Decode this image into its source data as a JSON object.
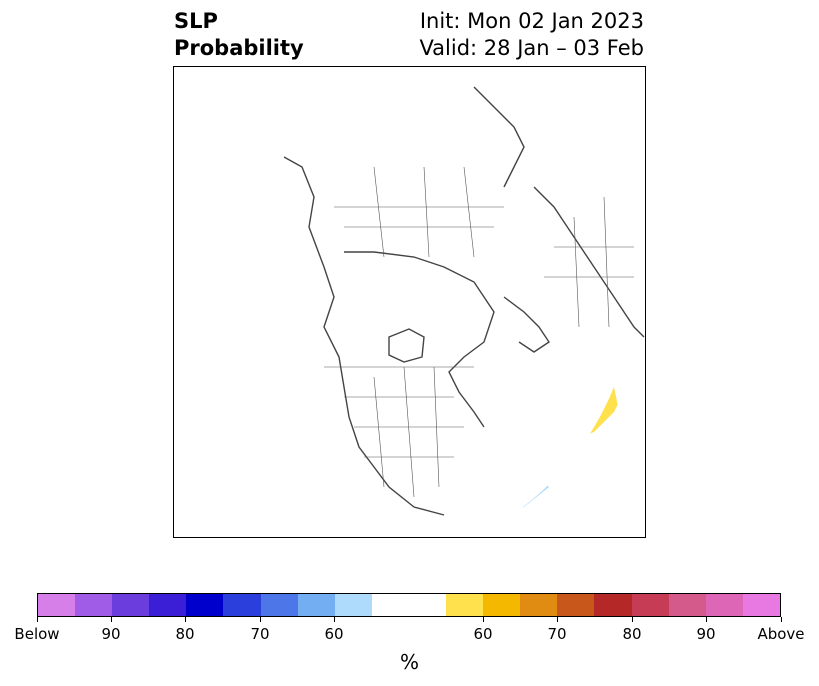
{
  "title": {
    "left_line1": "SLP",
    "left_line2": "Probability",
    "right_line1": "Init: Mon 02 Jan 2023",
    "right_line2": "Valid: 28 Jan – 03 Feb"
  },
  "colorbar": {
    "unit": "%",
    "colors": [
      "#d77fe9",
      "#a05ce6",
      "#6b3ddd",
      "#3a1fd6",
      "#0000cc",
      "#2a3fdb",
      "#4d76e8",
      "#74aef2",
      "#aedbfb",
      "#ffffff",
      "#ffffff",
      "#ffe14d",
      "#f4b800",
      "#e08c12",
      "#c8571c",
      "#b52828",
      "#c63c55",
      "#d45a8c",
      "#de66b7",
      "#e879e2"
    ],
    "tick_labels": [
      "Below",
      "90",
      "80",
      "70",
      "60",
      "60",
      "70",
      "80",
      "90",
      "Above"
    ]
  },
  "map": {
    "projection": "north-polar-stereographic",
    "colors": {
      "above_60": "#ffe14d",
      "above_65": "#f4b800",
      "above_70": "#e08c12",
      "below_60": "#aedbfb",
      "below_65": "#74aef2",
      "below_70": "#4d76e8",
      "coast": "#444444",
      "border": "#444444"
    }
  }
}
